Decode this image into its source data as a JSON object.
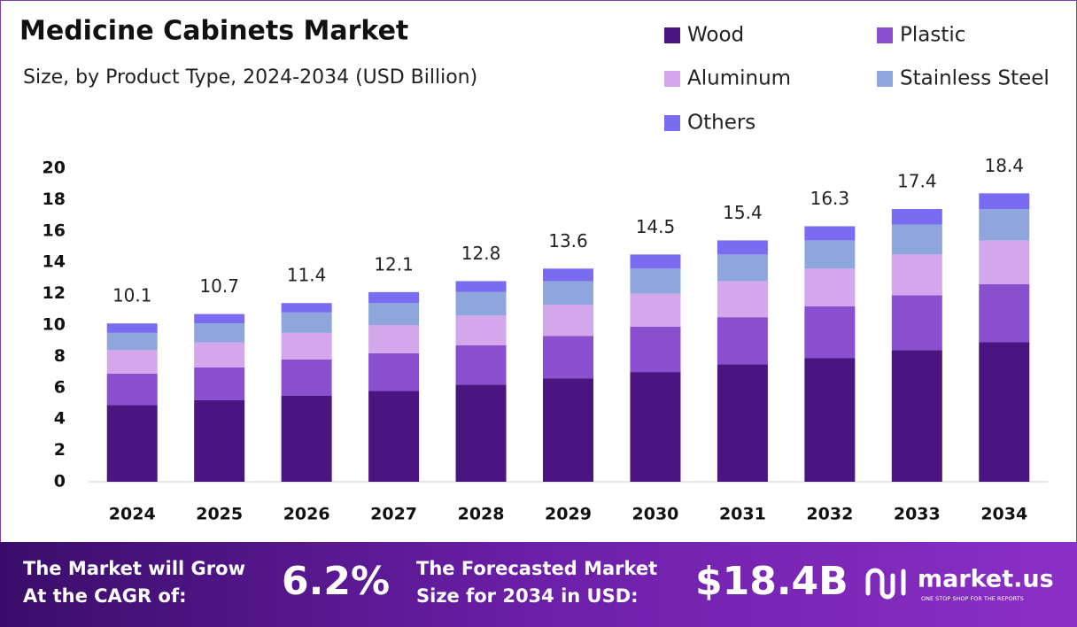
{
  "chart_data": {
    "type": "stacked-bar",
    "title": "Medicine Cabinets Market",
    "subtitle": "Size, by Product Type, 2024-2034 (USD Billion)",
    "categories": [
      "2024",
      "2025",
      "2026",
      "2027",
      "2028",
      "2029",
      "2030",
      "2031",
      "2032",
      "2033",
      "2034"
    ],
    "series": [
      {
        "name": "Wood",
        "color": "#4a1580",
        "values": [
          4.9,
          5.2,
          5.5,
          5.8,
          6.2,
          6.6,
          7.0,
          7.5,
          7.9,
          8.4,
          8.9
        ]
      },
      {
        "name": "Plastic",
        "color": "#8a4fcf",
        "values": [
          2.0,
          2.1,
          2.3,
          2.4,
          2.5,
          2.7,
          2.9,
          3.0,
          3.3,
          3.5,
          3.7
        ]
      },
      {
        "name": "Aluminum",
        "color": "#d4a6ec",
        "values": [
          1.5,
          1.6,
          1.7,
          1.8,
          1.9,
          2.0,
          2.1,
          2.3,
          2.4,
          2.6,
          2.8
        ]
      },
      {
        "name": "Stainless Steel",
        "color": "#8ea6dc",
        "values": [
          1.1,
          1.2,
          1.3,
          1.4,
          1.5,
          1.5,
          1.6,
          1.7,
          1.8,
          1.9,
          2.0
        ]
      },
      {
        "name": "Others",
        "color": "#7a6cf0",
        "values": [
          0.6,
          0.6,
          0.6,
          0.7,
          0.7,
          0.8,
          0.9,
          0.9,
          0.9,
          1.0,
          1.0
        ]
      }
    ],
    "totals": [
      10.1,
      10.7,
      11.4,
      12.1,
      12.8,
      13.6,
      14.5,
      15.4,
      16.3,
      17.4,
      18.4
    ],
    "ylim": [
      0,
      20
    ],
    "yticks": [
      0,
      2,
      4,
      6,
      8,
      10,
      12,
      14,
      16,
      18,
      20
    ],
    "grid": false
  },
  "footer": {
    "cagr_text": [
      "The Market will Grow",
      "At the CAGR of:"
    ],
    "cagr_value": "6.2%",
    "forecast_text": [
      "The Forecasted Market",
      "Size for 2034 in USD:"
    ],
    "forecast_value": "$18.4B",
    "brand": "market.us",
    "tagline": "ONE STOP SHOP FOR THE REPORTS"
  }
}
